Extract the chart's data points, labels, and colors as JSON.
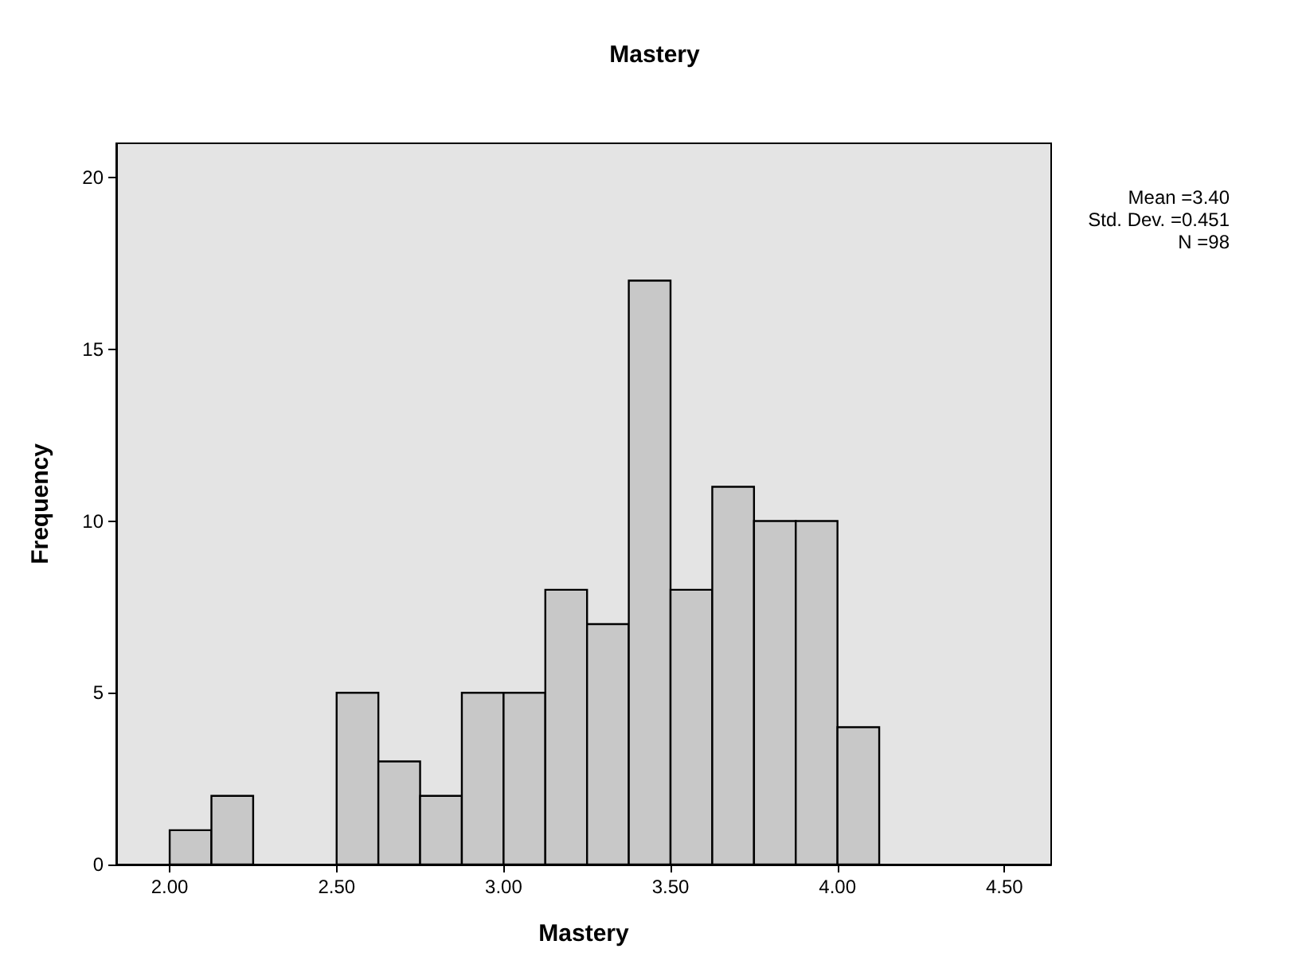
{
  "chart_data": {
    "type": "histogram",
    "title": "Mastery",
    "xlabel": "Mastery",
    "ylabel": "Frequency",
    "bins": [
      2.0,
      2.125,
      2.25,
      2.375,
      2.5,
      2.625,
      2.75,
      2.875,
      3.0,
      3.125,
      3.25,
      3.375,
      3.5,
      3.625,
      3.75,
      3.875,
      4.0,
      4.125
    ],
    "values": [
      1,
      2,
      0,
      0,
      5,
      3,
      2,
      5,
      5,
      8,
      7,
      17,
      8,
      11,
      10,
      10,
      4
    ],
    "color": "#c8c8c8",
    "xlim": [
      1.84,
      4.64
    ],
    "xticks": [
      {
        "value": 2,
        "label": "2.00"
      },
      {
        "value": 2.5,
        "label": "2.50"
      },
      {
        "value": 3,
        "label": "3.00"
      },
      {
        "value": 3.5,
        "label": "3.50"
      },
      {
        "value": 4,
        "label": "4.00"
      },
      {
        "value": 4.5,
        "label": "4.50"
      }
    ],
    "ylim": [
      0,
      21
    ],
    "yticks": [
      0,
      5,
      10,
      15,
      20
    ],
    "grid": false,
    "annotations": [
      "Mean =3.40",
      "Std. Dev. =0.451",
      "N =98"
    ]
  }
}
